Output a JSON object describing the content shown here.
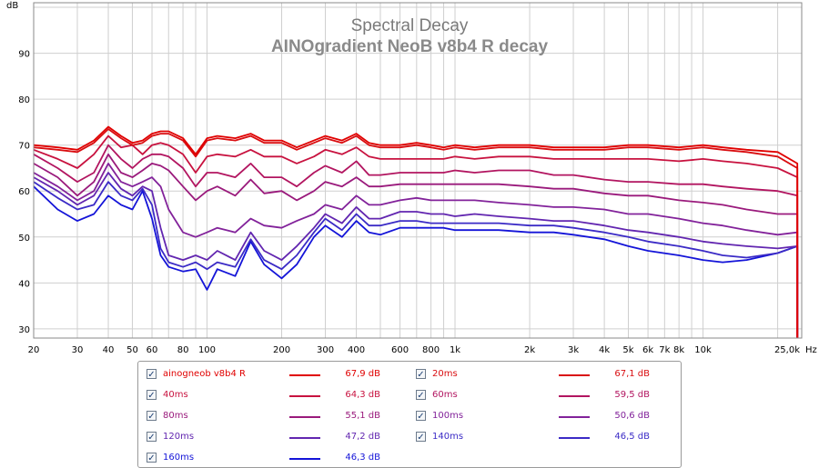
{
  "chart_data": {
    "type": "line",
    "title": "Spectral Decay",
    "subtitle": "AINOgradient NeoB v8b4 R decay",
    "ylabel": "dB",
    "xlabel": "Hz",
    "x_scale": "log",
    "xlim": [
      20,
      25000
    ],
    "ylim": [
      28,
      101
    ],
    "grid": true,
    "y_ticks": [
      "30",
      "40",
      "50",
      "60",
      "70",
      "80",
      "90"
    ],
    "x_ticks": [
      "20",
      "30",
      "40",
      "50",
      "60",
      "80",
      "100",
      "200",
      "300",
      "400",
      "600",
      "800",
      "1k",
      "2k",
      "3k",
      "4k",
      "5k",
      "6k",
      "7k",
      "8k",
      "10k",
      "25,0k"
    ],
    "x": [
      20,
      25,
      30,
      35,
      40,
      45,
      50,
      55,
      60,
      65,
      70,
      80,
      90,
      100,
      110,
      130,
      150,
      170,
      200,
      230,
      270,
      300,
      350,
      400,
      450,
      500,
      600,
      700,
      800,
      900,
      1000,
      1200,
      1500,
      2000,
      2500,
      3000,
      4000,
      5000,
      6000,
      8000,
      10000,
      12000,
      15000,
      20000,
      24000
    ],
    "series": [
      {
        "name": "ainogneob v8b4 R",
        "color": "#e00000",
        "legend_value": "67,9 dB",
        "values": [
          70,
          69.5,
          69,
          71,
          74,
          72,
          70.5,
          71,
          72.5,
          73,
          73,
          71.5,
          68,
          71.5,
          72,
          71.5,
          72.5,
          71,
          71,
          69.5,
          71,
          72,
          71,
          72.5,
          70.5,
          70,
          70,
          70.5,
          70,
          69.5,
          70,
          69.5,
          70,
          70,
          69.5,
          69.5,
          69.5,
          70,
          70,
          69.5,
          70,
          69.5,
          69,
          68.5,
          66
        ]
      },
      {
        "name": "20ms",
        "color": "#d90d10",
        "legend_value": "67,1 dB",
        "values": [
          69.5,
          69,
          68.5,
          70.5,
          73.5,
          71.5,
          70,
          70.5,
          72,
          72.5,
          72.5,
          71,
          67.5,
          71,
          71.5,
          71,
          72,
          70.5,
          70.5,
          69,
          70.5,
          71.5,
          70.5,
          72,
          70,
          69.5,
          69.5,
          70,
          69.5,
          69,
          69.5,
          69,
          69.5,
          69.5,
          69,
          69,
          69,
          69.5,
          69.5,
          69,
          69.5,
          69,
          68.5,
          67.5,
          65
        ]
      },
      {
        "name": "40ms",
        "color": "#c8123f",
        "legend_value": "64,3 dB",
        "values": [
          69,
          67,
          65,
          68,
          72,
          69.5,
          70,
          68,
          70,
          70.5,
          70,
          68,
          64,
          67.5,
          68,
          67.5,
          69,
          67.5,
          67.5,
          66,
          67.5,
          69,
          68,
          69.5,
          67.5,
          67,
          67,
          67,
          67,
          67,
          67.5,
          67,
          67.5,
          67.5,
          67,
          67,
          67,
          67,
          67,
          66.5,
          67,
          66.5,
          66,
          65,
          63
        ]
      },
      {
        "name": "60ms",
        "color": "#b21560",
        "legend_value": "59,5 dB",
        "values": [
          68,
          65,
          62,
          64,
          70,
          67,
          65,
          67,
          68,
          68,
          67.5,
          65,
          61,
          64,
          64,
          63,
          66,
          63,
          63,
          61,
          64,
          65.5,
          64,
          66.5,
          63.5,
          63.5,
          64,
          64,
          64,
          64,
          64.5,
          64,
          64.5,
          64.5,
          63.5,
          63.5,
          62.5,
          62,
          62,
          61.5,
          61.5,
          61,
          60.5,
          60,
          59
        ]
      },
      {
        "name": "80ms",
        "color": "#9a1a7c",
        "legend_value": "55,1 dB",
        "values": [
          66,
          63,
          59,
          62,
          68,
          64,
          63,
          64.5,
          66,
          65.5,
          64.5,
          61,
          58,
          60,
          61,
          59,
          62.5,
          59.5,
          60,
          58,
          60,
          62,
          61,
          63,
          61,
          61,
          61.5,
          61.5,
          61.5,
          61.5,
          61.5,
          61.5,
          61.5,
          61,
          60.5,
          60.5,
          59.5,
          59,
          59,
          58,
          57.5,
          57,
          56,
          55,
          55
        ]
      },
      {
        "name": "100ms",
        "color": "#82229a",
        "legend_value": "50,6 dB",
        "values": [
          64,
          61,
          58,
          60,
          66,
          62,
          61,
          62,
          63,
          61,
          56,
          51,
          50,
          51,
          52,
          51,
          54,
          52.5,
          52,
          53.5,
          55,
          57,
          56,
          59,
          57,
          57,
          58,
          58.5,
          58,
          58,
          58,
          58,
          57.5,
          57,
          56.5,
          56.5,
          56,
          55,
          55,
          54,
          53,
          52.5,
          51.5,
          50.5,
          51
        ]
      },
      {
        "name": "120ms",
        "color": "#6226b0",
        "legend_value": "47,2 dB",
        "values": [
          63,
          60,
          57,
          59,
          64,
          60.5,
          59,
          61,
          60,
          52,
          46,
          45,
          46,
          45,
          47,
          45,
          51,
          47,
          45,
          48,
          52,
          55,
          53,
          56.5,
          54,
          54,
          55.5,
          55.5,
          55,
          55,
          54.5,
          55,
          54.5,
          54,
          53.5,
          53.5,
          52.5,
          51.5,
          51,
          50,
          49,
          48.5,
          48,
          47.5,
          48
        ]
      },
      {
        "name": "140ms",
        "color": "#3b2bc6",
        "legend_value": "46,5 dB",
        "values": [
          62,
          58.5,
          56,
          57,
          62,
          59,
          58,
          60.5,
          57,
          47.5,
          44.5,
          43.5,
          44.5,
          43,
          44.5,
          43.5,
          49.5,
          45,
          43,
          46,
          51,
          54,
          51.5,
          55,
          52.5,
          52.5,
          53.5,
          53.5,
          53,
          53,
          53,
          53,
          53,
          52.5,
          52.5,
          52,
          51,
          50,
          49,
          48,
          47,
          46,
          45.5,
          46.5,
          48
        ]
      },
      {
        "name": "160ms",
        "color": "#1414d8",
        "legend_value": "46,3 dB",
        "values": [
          61,
          56,
          53.5,
          55,
          59,
          57,
          56,
          60,
          54,
          46,
          43.5,
          42.5,
          43,
          38.5,
          43,
          41.5,
          49,
          44,
          41,
          44,
          50,
          52.5,
          50,
          53.5,
          51,
          50.5,
          52,
          52,
          52,
          52,
          51.5,
          51.5,
          51.5,
          51,
          51,
          50.5,
          49.5,
          48,
          47,
          46,
          45,
          44.5,
          45,
          46.5,
          48
        ]
      }
    ]
  }
}
